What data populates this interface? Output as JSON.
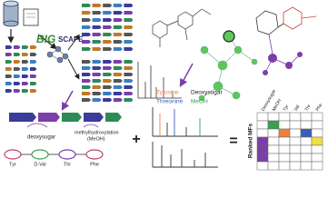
{
  "header": {
    "tool": [
      "BIG",
      "SCAPE"
    ]
  },
  "annotations": {
    "deoxysugar": "deoxysugar",
    "methylation": "methylhydroxylation",
    "methylation_abbr": "(MeOH)"
  },
  "residues": [
    "Tyr",
    "D-Val",
    "Thr",
    "Phe"
  ],
  "legend": {
    "tyrosine": "Tyrosine",
    "threonine": "Threonine",
    "deoxysugar": "Deoxysugar",
    "meoh": "MeOH"
  },
  "operators": [
    "+",
    "="
  ],
  "matrix": {
    "label": "Ranked MFs",
    "columns": [
      "Deoxysugar",
      "MeOH",
      "Tyr",
      "Val",
      "Thr",
      "Phe"
    ]
  }
}
